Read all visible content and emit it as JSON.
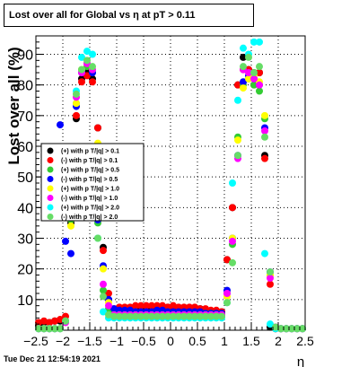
{
  "timestamp": "Tue Dec 21 12:54:19 2021",
  "chart_data": {
    "type": "scatter",
    "title": "Lost over all for Global vs   η at pT > 0.11",
    "xlabel": "η",
    "ylabel": "Lost over all (%)",
    "xlim": [
      -2.5,
      2.5
    ],
    "ylim": [
      0,
      96
    ],
    "x_ticks": [
      -2.5,
      -2,
      -1.5,
      -1,
      -0.5,
      0,
      0.5,
      1,
      1.5,
      2,
      2.5
    ],
    "x_tick_labels": [
      "−2.5",
      "−2",
      "−1.5",
      "−1",
      "−0.5",
      "0",
      "0.5",
      "1",
      "1.5",
      "2",
      "2.5"
    ],
    "y_ticks": [
      10,
      20,
      30,
      40,
      50,
      60,
      70,
      80,
      90
    ],
    "y_tick_labels": [
      "10",
      "20",
      "30",
      "40",
      "50",
      "60",
      "70",
      "80",
      "90"
    ],
    "grid": true,
    "legend_position": "center-left",
    "x": [
      -2.45,
      -2.35,
      -2.25,
      -2.15,
      -2.05,
      -1.95,
      -1.85,
      -1.75,
      -1.65,
      -1.55,
      -1.45,
      -1.35,
      -1.25,
      -1.15,
      -1.05,
      -0.95,
      -0.85,
      -0.75,
      -0.65,
      -0.55,
      -0.45,
      -0.35,
      -0.25,
      -0.15,
      -0.05,
      0.05,
      0.15,
      0.25,
      0.35,
      0.45,
      0.55,
      0.65,
      0.75,
      0.85,
      0.95,
      1.05,
      1.15,
      1.25,
      1.35,
      1.45,
      1.55,
      1.65,
      1.75,
      1.85,
      1.95,
      2.05,
      2.15,
      2.25,
      2.35,
      2.45
    ],
    "series": [
      {
        "name": "(+) with p T/|q| > 0.1",
        "color": "#000000",
        "values": [
          1.5,
          2.5,
          2.5,
          3,
          3,
          3,
          35,
          69,
          82,
          84,
          82,
          66,
          27,
          10,
          6.5,
          6.5,
          7,
          7,
          7,
          7,
          7,
          7,
          7.5,
          7.5,
          7.5,
          7,
          7,
          7,
          7,
          7,
          7,
          6.5,
          6,
          5.5,
          6,
          23,
          40,
          80,
          89,
          85,
          84,
          84,
          57,
          1,
          0.5,
          0.5,
          0.5,
          0.5,
          0.5,
          0.5
        ]
      },
      {
        "name": "(-) with p T/|q| > 0.1",
        "color": "#ff0000",
        "values": [
          2.5,
          3,
          2.5,
          3,
          3.5,
          4.5,
          36,
          70,
          81,
          83,
          81,
          66,
          26,
          12,
          7,
          7.5,
          7.5,
          7.5,
          8,
          8,
          8,
          8,
          8,
          8,
          7.5,
          8,
          7.5,
          7.5,
          7.5,
          7.5,
          7,
          7,
          6.5,
          6.5,
          6,
          23,
          40,
          80,
          85,
          85,
          80,
          84,
          56,
          15,
          0.5,
          0.5,
          0.5,
          0.5,
          0.5,
          0.5
        ]
      },
      {
        "name": "(+) with p T/|q| > 0.5",
        "color": "#33cc33",
        "values": [
          0.5,
          0.5,
          0.5,
          0.5,
          0.5,
          3,
          36,
          74,
          85,
          86,
          84,
          35,
          13,
          7,
          6,
          6,
          6,
          6,
          6,
          5.5,
          5.5,
          5.5,
          6,
          6,
          6,
          5.5,
          5.5,
          5.5,
          5.5,
          5.5,
          5.5,
          5.5,
          5.5,
          5,
          5,
          12,
          28,
          63,
          80,
          82,
          80,
          78,
          69,
          18,
          1,
          0.5,
          0.5,
          0.5,
          0.5,
          0.5
        ]
      },
      {
        "name": "(-) with p T/|q| > 0.5",
        "color": "#0000ff",
        "values": [
          0.5,
          0.5,
          0.5,
          0.5,
          67,
          29,
          25,
          73,
          84,
          87,
          84,
          36,
          21,
          10,
          7,
          6.5,
          6.5,
          6.5,
          6,
          6,
          6,
          6,
          6.5,
          6.5,
          6,
          6,
          6,
          6,
          6,
          6,
          6,
          5.5,
          5.5,
          5.5,
          5.5,
          13,
          30,
          57,
          81,
          83,
          82,
          80,
          66,
          19,
          1,
          0.5,
          0.5,
          0.5,
          0.5,
          0.5
        ]
      },
      {
        "name": "(+) with p T/|q| > 1.0",
        "color": "#ffff00",
        "values": [
          0.5,
          0.5,
          0.5,
          0.5,
          0.5,
          2.5,
          34,
          74,
          85,
          87,
          85,
          61,
          20,
          9,
          5,
          5,
          5,
          5,
          5,
          5,
          5,
          5,
          5,
          5,
          5,
          5,
          5,
          5,
          5,
          5,
          5,
          5,
          5,
          5,
          5,
          11,
          30,
          62,
          79,
          82,
          83,
          81,
          70,
          18,
          1,
          0.5,
          0.5,
          0.5,
          0.5,
          0.5
        ]
      },
      {
        "name": "(-) with p T/|q| > 1.0",
        "color": "#ff00ff",
        "values": [
          0.5,
          0.5,
          0.5,
          0.5,
          0.5,
          2.5,
          37,
          76,
          84,
          87,
          85,
          42,
          15,
          8,
          5,
          5,
          5,
          5,
          5,
          5,
          5,
          5,
          5,
          5,
          5,
          5,
          5,
          5,
          5,
          5,
          5,
          5,
          5,
          5,
          5,
          12,
          29,
          56,
          85,
          84,
          82,
          80,
          65,
          17,
          1,
          0.5,
          0.5,
          0.5,
          0.5,
          0.5
        ]
      },
      {
        "name": "(+) with p T/|q| > 2.0",
        "color": "#00ffff",
        "values": [
          0.5,
          0.5,
          0.5,
          0.5,
          0.5,
          3,
          38,
          78,
          89,
          91,
          90,
          30,
          6,
          4,
          4,
          4,
          4,
          4,
          4,
          4,
          4,
          4,
          4,
          4,
          4,
          4,
          4,
          4,
          4,
          4,
          4,
          4,
          4,
          4,
          4,
          9,
          48,
          75,
          92,
          90,
          94,
          94,
          25,
          2,
          0.5,
          0.5,
          0.5,
          0.5,
          0.5,
          0.5
        ]
      },
      {
        "name": "(-) with p T/|q| > 2.0",
        "color": "#66dd66",
        "values": [
          0.5,
          0.5,
          0.5,
          0.5,
          0.5,
          3,
          37,
          77,
          85,
          88,
          86,
          30,
          11,
          5,
          4.5,
          4.5,
          4.5,
          4.5,
          4.5,
          4.5,
          4.5,
          4.5,
          4.5,
          4.5,
          4.5,
          4.5,
          4.5,
          4.5,
          4.5,
          4.5,
          4.5,
          4.5,
          4.5,
          4.5,
          4.5,
          9,
          22,
          57,
          86,
          89,
          84,
          86,
          63,
          19,
          1,
          0.5,
          0.5,
          0.5,
          0.5,
          0.5
        ]
      }
    ]
  }
}
